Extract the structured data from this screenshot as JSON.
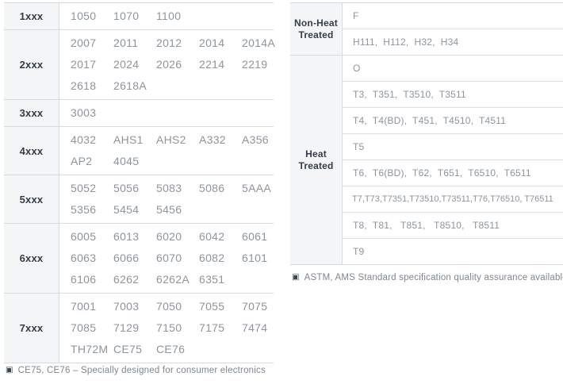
{
  "colors": {
    "border": "#d8dbde",
    "inner_border": "#dee1e3",
    "header_bg": "#f4f5f6",
    "header_text": "#323d49",
    "cell_text": "#8d959e",
    "footnote_text": "#7e8791"
  },
  "alloy_table": {
    "rows": [
      {
        "label": "1xxx",
        "lines": [
          [
            "1050",
            "1070",
            "1100"
          ]
        ]
      },
      {
        "label": "2xxx",
        "lines": [
          [
            "2007",
            "2011",
            "2012",
            "2014",
            "2014A"
          ],
          [
            "2017",
            "2024",
            "2026",
            "2214",
            "2219"
          ],
          [
            "2618",
            "2618A"
          ]
        ]
      },
      {
        "label": "3xxx",
        "lines": [
          [
            "3003"
          ]
        ]
      },
      {
        "label": "4xxx",
        "lines": [
          [
            "4032",
            "AHS1",
            "AHS2",
            "A332",
            "A356"
          ],
          [
            "AP2",
            "4045"
          ]
        ]
      },
      {
        "label": "5xxx",
        "lines": [
          [
            "5052",
            "5056",
            "5083",
            "5086",
            "5AAA"
          ],
          [
            "5356",
            "5454",
            "5456"
          ]
        ]
      },
      {
        "label": "6xxx",
        "lines": [
          [
            "6005",
            "6013",
            "6020",
            "6042",
            "6061"
          ],
          [
            "6063",
            "6066",
            "6070",
            "6082",
            "6101"
          ],
          [
            "6106",
            "6262",
            "6262A",
            "6351"
          ]
        ]
      },
      {
        "label": "7xxx",
        "lines": [
          [
            "7001",
            "7003",
            "7050",
            "7055",
            "7075"
          ],
          [
            "7085",
            "7129",
            "7150",
            "7175",
            "7474"
          ],
          [
            "TH72M",
            "CE75",
            "CE76"
          ]
        ]
      }
    ],
    "footnote": {
      "bullet": "▣",
      "text": "CE75, CE76 – Specially designed for consumer electronics"
    }
  },
  "temper_table": {
    "groups": [
      {
        "label_lines": [
          "Non-Heat",
          "Treated"
        ],
        "rows": [
          "F",
          "H111,  H112,  H32,  H34"
        ]
      },
      {
        "label_lines": [
          "Heat",
          "Treated"
        ],
        "rows": [
          "O",
          "T3,  T351,  T3510,  T3511",
          "T4,  T4(BD),  T451,  T4510,  T4511",
          "T5",
          "T6,  T6(BD),  T62,  T651,  T6510,  T6511",
          "T7,T73,T7351,T73510,T73511,T76,T76510, T76511",
          "T8,  T81,   T851,   T8510,   T8511",
          "T9"
        ]
      }
    ],
    "footnote": {
      "bullet": "▣",
      "text": "ASTM, AMS Standard specification quality assurance available"
    }
  }
}
